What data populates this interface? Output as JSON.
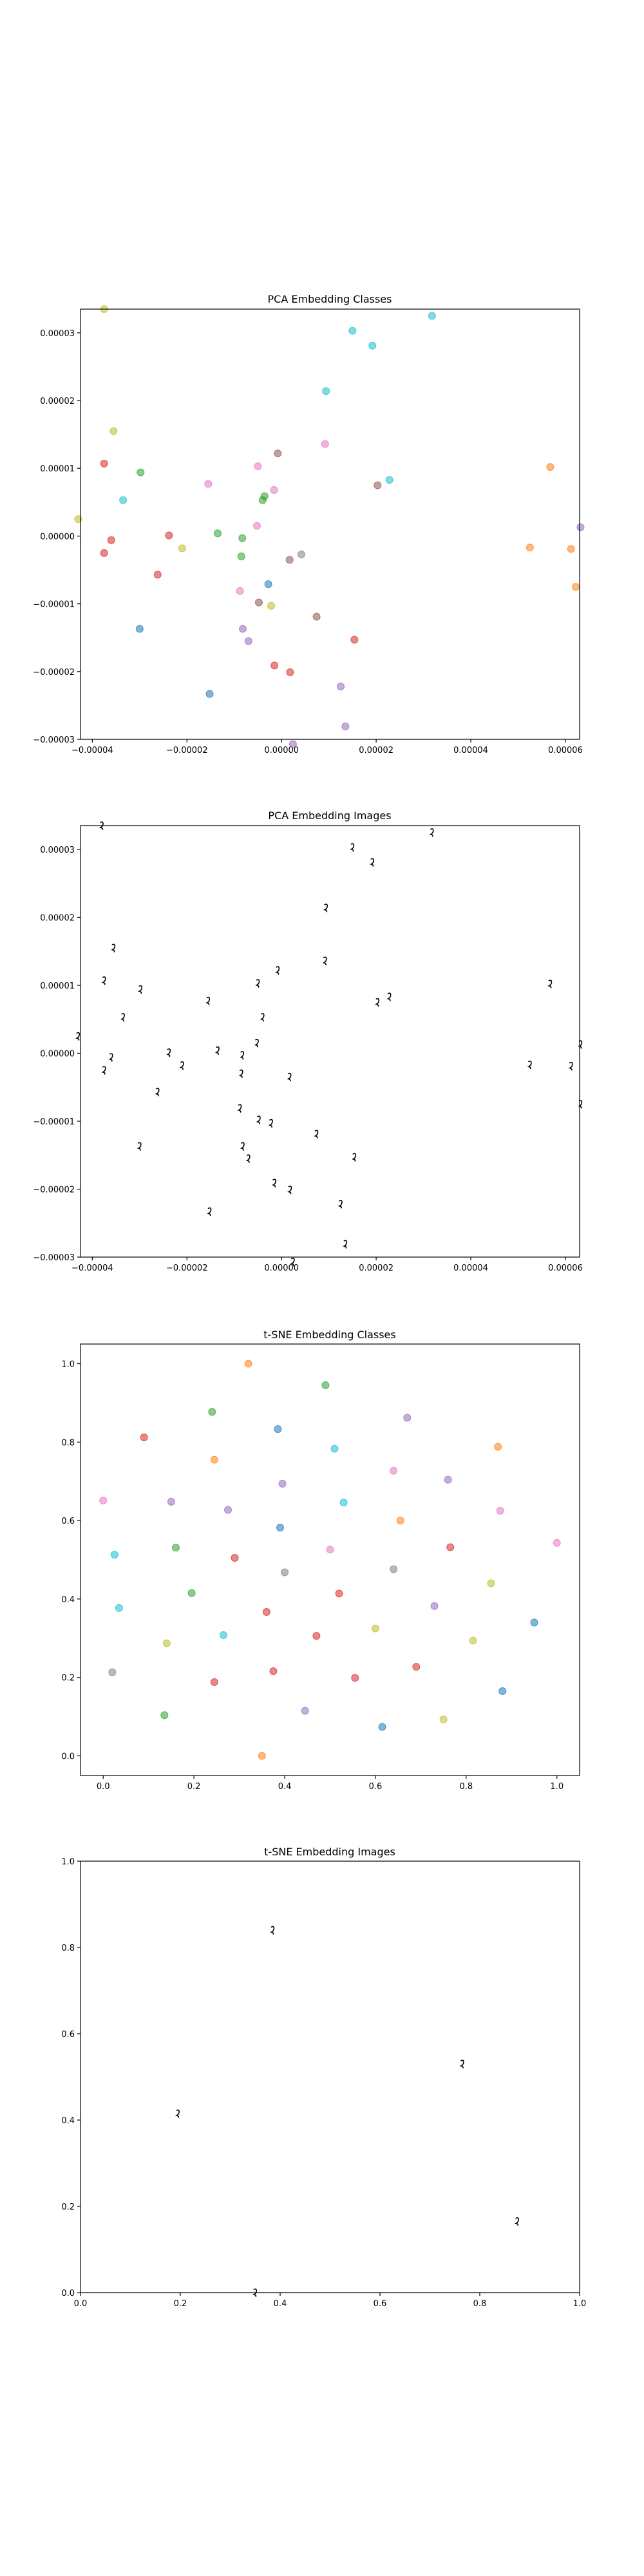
{
  "colors": {
    "blue": "#1f77b4",
    "orange": "#ff7f0e",
    "green": "#2ca02c",
    "red": "#d62728",
    "purple": "#9467bd",
    "brown": "#8c564b",
    "pink": "#e377c2",
    "gray": "#7f7f7f",
    "olive": "#bcbd22",
    "cyan": "#17becf"
  },
  "chart_data": [
    {
      "type": "scatter",
      "title": "PCA Embedding Classes",
      "xlim": [
        -4.25e-05,
        6.3e-05
      ],
      "ylim": [
        -3e-05,
        3.35e-05
      ],
      "xticks": [
        {
          "v": -4e-05,
          "label": "−0.00004"
        },
        {
          "v": -2e-05,
          "label": "−0.00002"
        },
        {
          "v": 0.0,
          "label": "0.00000"
        },
        {
          "v": 2e-05,
          "label": "0.00002"
        },
        {
          "v": 4e-05,
          "label": "0.00004"
        },
        {
          "v": 6e-05,
          "label": "0.00006"
        }
      ],
      "yticks": [
        {
          "v": -3e-05,
          "label": "−0.00003"
        },
        {
          "v": -2e-05,
          "label": "−0.00002"
        },
        {
          "v": -1e-05,
          "label": "−0.00001"
        },
        {
          "v": 0.0,
          "label": "0.00000"
        },
        {
          "v": 1e-05,
          "label": "0.00001"
        },
        {
          "v": 2e-05,
          "label": "0.00002"
        },
        {
          "v": 3e-05,
          "label": "0.00003"
        }
      ],
      "points": [
        {
          "x": -4.3e-05,
          "y": 2.5e-06,
          "c": "olive"
        },
        {
          "x": -3.75e-05,
          "y": 3.35e-05,
          "c": "olive"
        },
        {
          "x": -3.75e-05,
          "y": 1.07e-05,
          "c": "red"
        },
        {
          "x": -3.6e-05,
          "y": -6e-07,
          "c": "red"
        },
        {
          "x": -3.75e-05,
          "y": -2.5e-06,
          "c": "red"
        },
        {
          "x": -3.55e-05,
          "y": 1.55e-05,
          "c": "olive"
        },
        {
          "x": -3.35e-05,
          "y": 5.3e-06,
          "c": "cyan"
        },
        {
          "x": -2.98e-05,
          "y": 9.4e-06,
          "c": "green"
        },
        {
          "x": -3e-05,
          "y": -1.37e-05,
          "c": "blue"
        },
        {
          "x": -2.62e-05,
          "y": -5.7e-06,
          "c": "red"
        },
        {
          "x": -2.38e-05,
          "y": 1e-07,
          "c": "red"
        },
        {
          "x": -2.1e-05,
          "y": -1.8e-06,
          "c": "olive"
        },
        {
          "x": -1.55e-05,
          "y": 7.7e-06,
          "c": "pink"
        },
        {
          "x": -1.52e-05,
          "y": -2.33e-05,
          "c": "blue"
        },
        {
          "x": -1.35e-05,
          "y": 4e-07,
          "c": "green"
        },
        {
          "x": -8.8e-06,
          "y": -8.1e-06,
          "c": "pink"
        },
        {
          "x": -8.3e-06,
          "y": -3e-07,
          "c": "green"
        },
        {
          "x": -8.5e-06,
          "y": -3e-06,
          "c": "green"
        },
        {
          "x": -8.2e-06,
          "y": -1.37e-05,
          "c": "purple"
        },
        {
          "x": -7e-06,
          "y": -1.55e-05,
          "c": "purple"
        },
        {
          "x": -5.2e-06,
          "y": 1.5e-06,
          "c": "pink"
        },
        {
          "x": -5e-06,
          "y": 1.03e-05,
          "c": "pink"
        },
        {
          "x": -4.8e-06,
          "y": -9.8e-06,
          "c": "brown"
        },
        {
          "x": -4e-06,
          "y": 5.3e-06,
          "c": "green"
        },
        {
          "x": -3.6e-06,
          "y": 5.9e-06,
          "c": "green"
        },
        {
          "x": -2.8e-06,
          "y": -7.1e-06,
          "c": "blue"
        },
        {
          "x": -2.2e-06,
          "y": -1.03e-05,
          "c": "olive"
        },
        {
          "x": -1.5e-06,
          "y": -1.91e-05,
          "c": "red"
        },
        {
          "x": -1.6e-06,
          "y": 6.8e-06,
          "c": "pink"
        },
        {
          "x": -8e-07,
          "y": 1.22e-05,
          "c": "brown"
        },
        {
          "x": 1.7e-06,
          "y": -3.5e-06,
          "c": "brown"
        },
        {
          "x": 1.8e-06,
          "y": -2.01e-05,
          "c": "red"
        },
        {
          "x": 2.4e-06,
          "y": -3.07e-05,
          "c": "purple"
        },
        {
          "x": 4.2e-06,
          "y": -2.7e-06,
          "c": "gray"
        },
        {
          "x": 7.4e-06,
          "y": -1.19e-05,
          "c": "brown"
        },
        {
          "x": 9.2e-06,
          "y": 1.36e-05,
          "c": "pink"
        },
        {
          "x": 9.4e-06,
          "y": 2.14e-05,
          "c": "cyan"
        },
        {
          "x": 1.25e-05,
          "y": -2.22e-05,
          "c": "purple"
        },
        {
          "x": 1.35e-05,
          "y": -2.81e-05,
          "c": "purple"
        },
        {
          "x": 1.5e-05,
          "y": 3.03e-05,
          "c": "cyan"
        },
        {
          "x": 1.54e-05,
          "y": -1.53e-05,
          "c": "red"
        },
        {
          "x": 1.92e-05,
          "y": 2.81e-05,
          "c": "cyan"
        },
        {
          "x": 2.03e-05,
          "y": 7.5e-06,
          "c": "brown"
        },
        {
          "x": 2.28e-05,
          "y": 8.3e-06,
          "c": "cyan"
        },
        {
          "x": 3.18e-05,
          "y": 3.25e-05,
          "c": "cyan"
        },
        {
          "x": 5.25e-05,
          "y": -1.7e-06,
          "c": "orange"
        },
        {
          "x": 5.68e-05,
          "y": 1.02e-05,
          "c": "orange"
        },
        {
          "x": 6.12e-05,
          "y": -1.9e-06,
          "c": "orange"
        },
        {
          "x": 6.22e-05,
          "y": -7.5e-06,
          "c": "orange"
        },
        {
          "x": 6.32e-05,
          "y": 1.3e-06,
          "c": "purple"
        }
      ]
    },
    {
      "type": "scatter",
      "title": "PCA Embedding Images",
      "xlim": [
        -4.25e-05,
        6.3e-05
      ],
      "ylim": [
        -3e-05,
        3.35e-05
      ],
      "xticks": [
        {
          "v": -4e-05,
          "label": "−0.00004"
        },
        {
          "v": -2e-05,
          "label": "−0.00002"
        },
        {
          "v": 0.0,
          "label": "0.00000"
        },
        {
          "v": 2e-05,
          "label": "0.00002"
        },
        {
          "v": 4e-05,
          "label": "0.00004"
        },
        {
          "v": 6e-05,
          "label": "0.00006"
        }
      ],
      "yticks": [
        {
          "v": -3e-05,
          "label": "−0.00003"
        },
        {
          "v": -2e-05,
          "label": "−0.00002"
        },
        {
          "v": -1e-05,
          "label": "−0.00001"
        },
        {
          "v": 0.0,
          "label": "0.00000"
        },
        {
          "v": 1e-05,
          "label": "0.00001"
        },
        {
          "v": 2e-05,
          "label": "0.00002"
        },
        {
          "v": 3e-05,
          "label": "0.00003"
        }
      ],
      "points": [
        {
          "x": -3.8e-05,
          "y": 3.35e-05
        },
        {
          "x": -4.3e-05,
          "y": 2.5e-06
        },
        {
          "x": -3.75e-05,
          "y": 1.07e-05
        },
        {
          "x": -3.6e-05,
          "y": -6e-07
        },
        {
          "x": -3.75e-05,
          "y": -2.5e-06
        },
        {
          "x": -3.55e-05,
          "y": 1.55e-05
        },
        {
          "x": -3.35e-05,
          "y": 5.3e-06
        },
        {
          "x": -2.98e-05,
          "y": 9.4e-06
        },
        {
          "x": -3e-05,
          "y": -1.37e-05
        },
        {
          "x": -2.62e-05,
          "y": -5.7e-06
        },
        {
          "x": -2.38e-05,
          "y": 1e-07
        },
        {
          "x": -2.1e-05,
          "y": -1.8e-06
        },
        {
          "x": -1.55e-05,
          "y": 7.7e-06
        },
        {
          "x": -1.52e-05,
          "y": -2.33e-05
        },
        {
          "x": -1.35e-05,
          "y": 4e-07
        },
        {
          "x": -8.8e-06,
          "y": -8.1e-06
        },
        {
          "x": -8.3e-06,
          "y": -3e-07
        },
        {
          "x": -8.5e-06,
          "y": -3e-06
        },
        {
          "x": -8.2e-06,
          "y": -1.37e-05
        },
        {
          "x": -7e-06,
          "y": -1.55e-05
        },
        {
          "x": -5.2e-06,
          "y": 1.5e-06
        },
        {
          "x": -5e-06,
          "y": 1.03e-05
        },
        {
          "x": -4.8e-06,
          "y": -9.8e-06
        },
        {
          "x": -4e-06,
          "y": 5.3e-06
        },
        {
          "x": -2.2e-06,
          "y": -1.03e-05
        },
        {
          "x": -1.5e-06,
          "y": -1.91e-05
        },
        {
          "x": -8e-07,
          "y": 1.22e-05
        },
        {
          "x": 1.7e-06,
          "y": -3.5e-06
        },
        {
          "x": 1.8e-06,
          "y": -2.01e-05
        },
        {
          "x": 2.4e-06,
          "y": -3.07e-05
        },
        {
          "x": 7.4e-06,
          "y": -1.19e-05
        },
        {
          "x": 9.2e-06,
          "y": 1.36e-05
        },
        {
          "x": 9.4e-06,
          "y": 2.14e-05
        },
        {
          "x": 1.25e-05,
          "y": -2.22e-05
        },
        {
          "x": 1.35e-05,
          "y": -2.81e-05
        },
        {
          "x": 1.5e-05,
          "y": 3.03e-05
        },
        {
          "x": 1.54e-05,
          "y": -1.53e-05
        },
        {
          "x": 1.92e-05,
          "y": 2.81e-05
        },
        {
          "x": 2.03e-05,
          "y": 7.5e-06
        },
        {
          "x": 2.28e-05,
          "y": 8.3e-06
        },
        {
          "x": 3.18e-05,
          "y": 3.25e-05
        },
        {
          "x": 5.25e-05,
          "y": -1.7e-06
        },
        {
          "x": 5.68e-05,
          "y": 1.02e-05
        },
        {
          "x": 6.12e-05,
          "y": -1.9e-06
        },
        {
          "x": 6.32e-05,
          "y": 1.3e-06
        },
        {
          "x": 6.32e-05,
          "y": -7.5e-06
        }
      ]
    },
    {
      "type": "scatter",
      "title": "t-SNE Embedding Classes",
      "xlim": [
        -0.05,
        1.05
      ],
      "ylim": [
        -0.05,
        1.05
      ],
      "xticks": [
        {
          "v": 0.0,
          "label": "0.0"
        },
        {
          "v": 0.2,
          "label": "0.2"
        },
        {
          "v": 0.4,
          "label": "0.4"
        },
        {
          "v": 0.6,
          "label": "0.6"
        },
        {
          "v": 0.8,
          "label": "0.8"
        },
        {
          "v": 1.0,
          "label": "1.0"
        }
      ],
      "yticks": [
        {
          "v": 0.0,
          "label": "0.0"
        },
        {
          "v": 0.2,
          "label": "0.2"
        },
        {
          "v": 0.4,
          "label": "0.4"
        },
        {
          "v": 0.6,
          "label": "0.6"
        },
        {
          "v": 0.8,
          "label": "0.8"
        },
        {
          "v": 1.0,
          "label": "1.0"
        }
      ],
      "points": [
        {
          "x": 0.32,
          "y": 1.0,
          "c": "orange"
        },
        {
          "x": 0.49,
          "y": 0.945,
          "c": "green"
        },
        {
          "x": 0.24,
          "y": 0.877,
          "c": "green"
        },
        {
          "x": 0.67,
          "y": 0.862,
          "c": "purple"
        },
        {
          "x": 0.385,
          "y": 0.833,
          "c": "blue"
        },
        {
          "x": 0.09,
          "y": 0.812,
          "c": "red"
        },
        {
          "x": 0.87,
          "y": 0.788,
          "c": "orange"
        },
        {
          "x": 0.51,
          "y": 0.783,
          "c": "cyan"
        },
        {
          "x": 0.245,
          "y": 0.755,
          "c": "orange"
        },
        {
          "x": 0.64,
          "y": 0.727,
          "c": "pink"
        },
        {
          "x": 0.76,
          "y": 0.704,
          "c": "purple"
        },
        {
          "x": 0.395,
          "y": 0.694,
          "c": "purple"
        },
        {
          "x": 0.0,
          "y": 0.651,
          "c": "pink"
        },
        {
          "x": 0.15,
          "y": 0.648,
          "c": "purple"
        },
        {
          "x": 0.53,
          "y": 0.646,
          "c": "cyan"
        },
        {
          "x": 0.275,
          "y": 0.627,
          "c": "purple"
        },
        {
          "x": 0.875,
          "y": 0.625,
          "c": "pink"
        },
        {
          "x": 0.655,
          "y": 0.6,
          "c": "orange"
        },
        {
          "x": 0.39,
          "y": 0.582,
          "c": "blue"
        },
        {
          "x": 1.0,
          "y": 0.543,
          "c": "pink"
        },
        {
          "x": 0.16,
          "y": 0.531,
          "c": "green"
        },
        {
          "x": 0.765,
          "y": 0.532,
          "c": "red"
        },
        {
          "x": 0.5,
          "y": 0.526,
          "c": "pink"
        },
        {
          "x": 0.025,
          "y": 0.513,
          "c": "cyan"
        },
        {
          "x": 0.29,
          "y": 0.505,
          "c": "red"
        },
        {
          "x": 0.64,
          "y": 0.476,
          "c": "gray"
        },
        {
          "x": 0.4,
          "y": 0.468,
          "c": "gray"
        },
        {
          "x": 0.855,
          "y": 0.44,
          "c": "olive"
        },
        {
          "x": 0.195,
          "y": 0.415,
          "c": "green"
        },
        {
          "x": 0.52,
          "y": 0.414,
          "c": "red"
        },
        {
          "x": 0.73,
          "y": 0.382,
          "c": "purple"
        },
        {
          "x": 0.035,
          "y": 0.377,
          "c": "cyan"
        },
        {
          "x": 0.36,
          "y": 0.367,
          "c": "red"
        },
        {
          "x": 0.95,
          "y": 0.34,
          "c": "blue"
        },
        {
          "x": 0.6,
          "y": 0.325,
          "c": "olive"
        },
        {
          "x": 0.265,
          "y": 0.308,
          "c": "cyan"
        },
        {
          "x": 0.47,
          "y": 0.306,
          "c": "red"
        },
        {
          "x": 0.815,
          "y": 0.294,
          "c": "olive"
        },
        {
          "x": 0.14,
          "y": 0.287,
          "c": "olive"
        },
        {
          "x": 0.69,
          "y": 0.227,
          "c": "red"
        },
        {
          "x": 0.375,
          "y": 0.216,
          "c": "red"
        },
        {
          "x": 0.02,
          "y": 0.213,
          "c": "gray"
        },
        {
          "x": 0.555,
          "y": 0.199,
          "c": "red"
        },
        {
          "x": 0.245,
          "y": 0.188,
          "c": "red"
        },
        {
          "x": 0.88,
          "y": 0.165,
          "c": "blue"
        },
        {
          "x": 0.445,
          "y": 0.115,
          "c": "purple"
        },
        {
          "x": 0.135,
          "y": 0.104,
          "c": "green"
        },
        {
          "x": 0.75,
          "y": 0.093,
          "c": "olive"
        },
        {
          "x": 0.615,
          "y": 0.074,
          "c": "blue"
        },
        {
          "x": 0.35,
          "y": 0.0,
          "c": "orange"
        }
      ]
    },
    {
      "type": "scatter",
      "title": "t-SNE Embedding Images",
      "xlim": [
        0.0,
        1.0
      ],
      "ylim": [
        0.0,
        1.0
      ],
      "xticks": [
        {
          "v": 0.0,
          "label": "0.0"
        },
        {
          "v": 0.2,
          "label": "0.2"
        },
        {
          "v": 0.4,
          "label": "0.4"
        },
        {
          "v": 0.6,
          "label": "0.6"
        },
        {
          "v": 0.8,
          "label": "0.8"
        },
        {
          "v": 1.0,
          "label": "1.0"
        }
      ],
      "yticks": [
        {
          "v": 0.0,
          "label": "0.0"
        },
        {
          "v": 0.2,
          "label": "0.2"
        },
        {
          "v": 0.4,
          "label": "0.4"
        },
        {
          "v": 0.6,
          "label": "0.6"
        },
        {
          "v": 0.8,
          "label": "0.8"
        },
        {
          "v": 1.0,
          "label": "1.0"
        }
      ],
      "points": [
        {
          "x": 0.385,
          "y": 0.84
        },
        {
          "x": 0.765,
          "y": 0.53
        },
        {
          "x": 0.195,
          "y": 0.415
        },
        {
          "x": 0.875,
          "y": 0.165
        },
        {
          "x": 0.35,
          "y": 0.0
        }
      ]
    }
  ]
}
